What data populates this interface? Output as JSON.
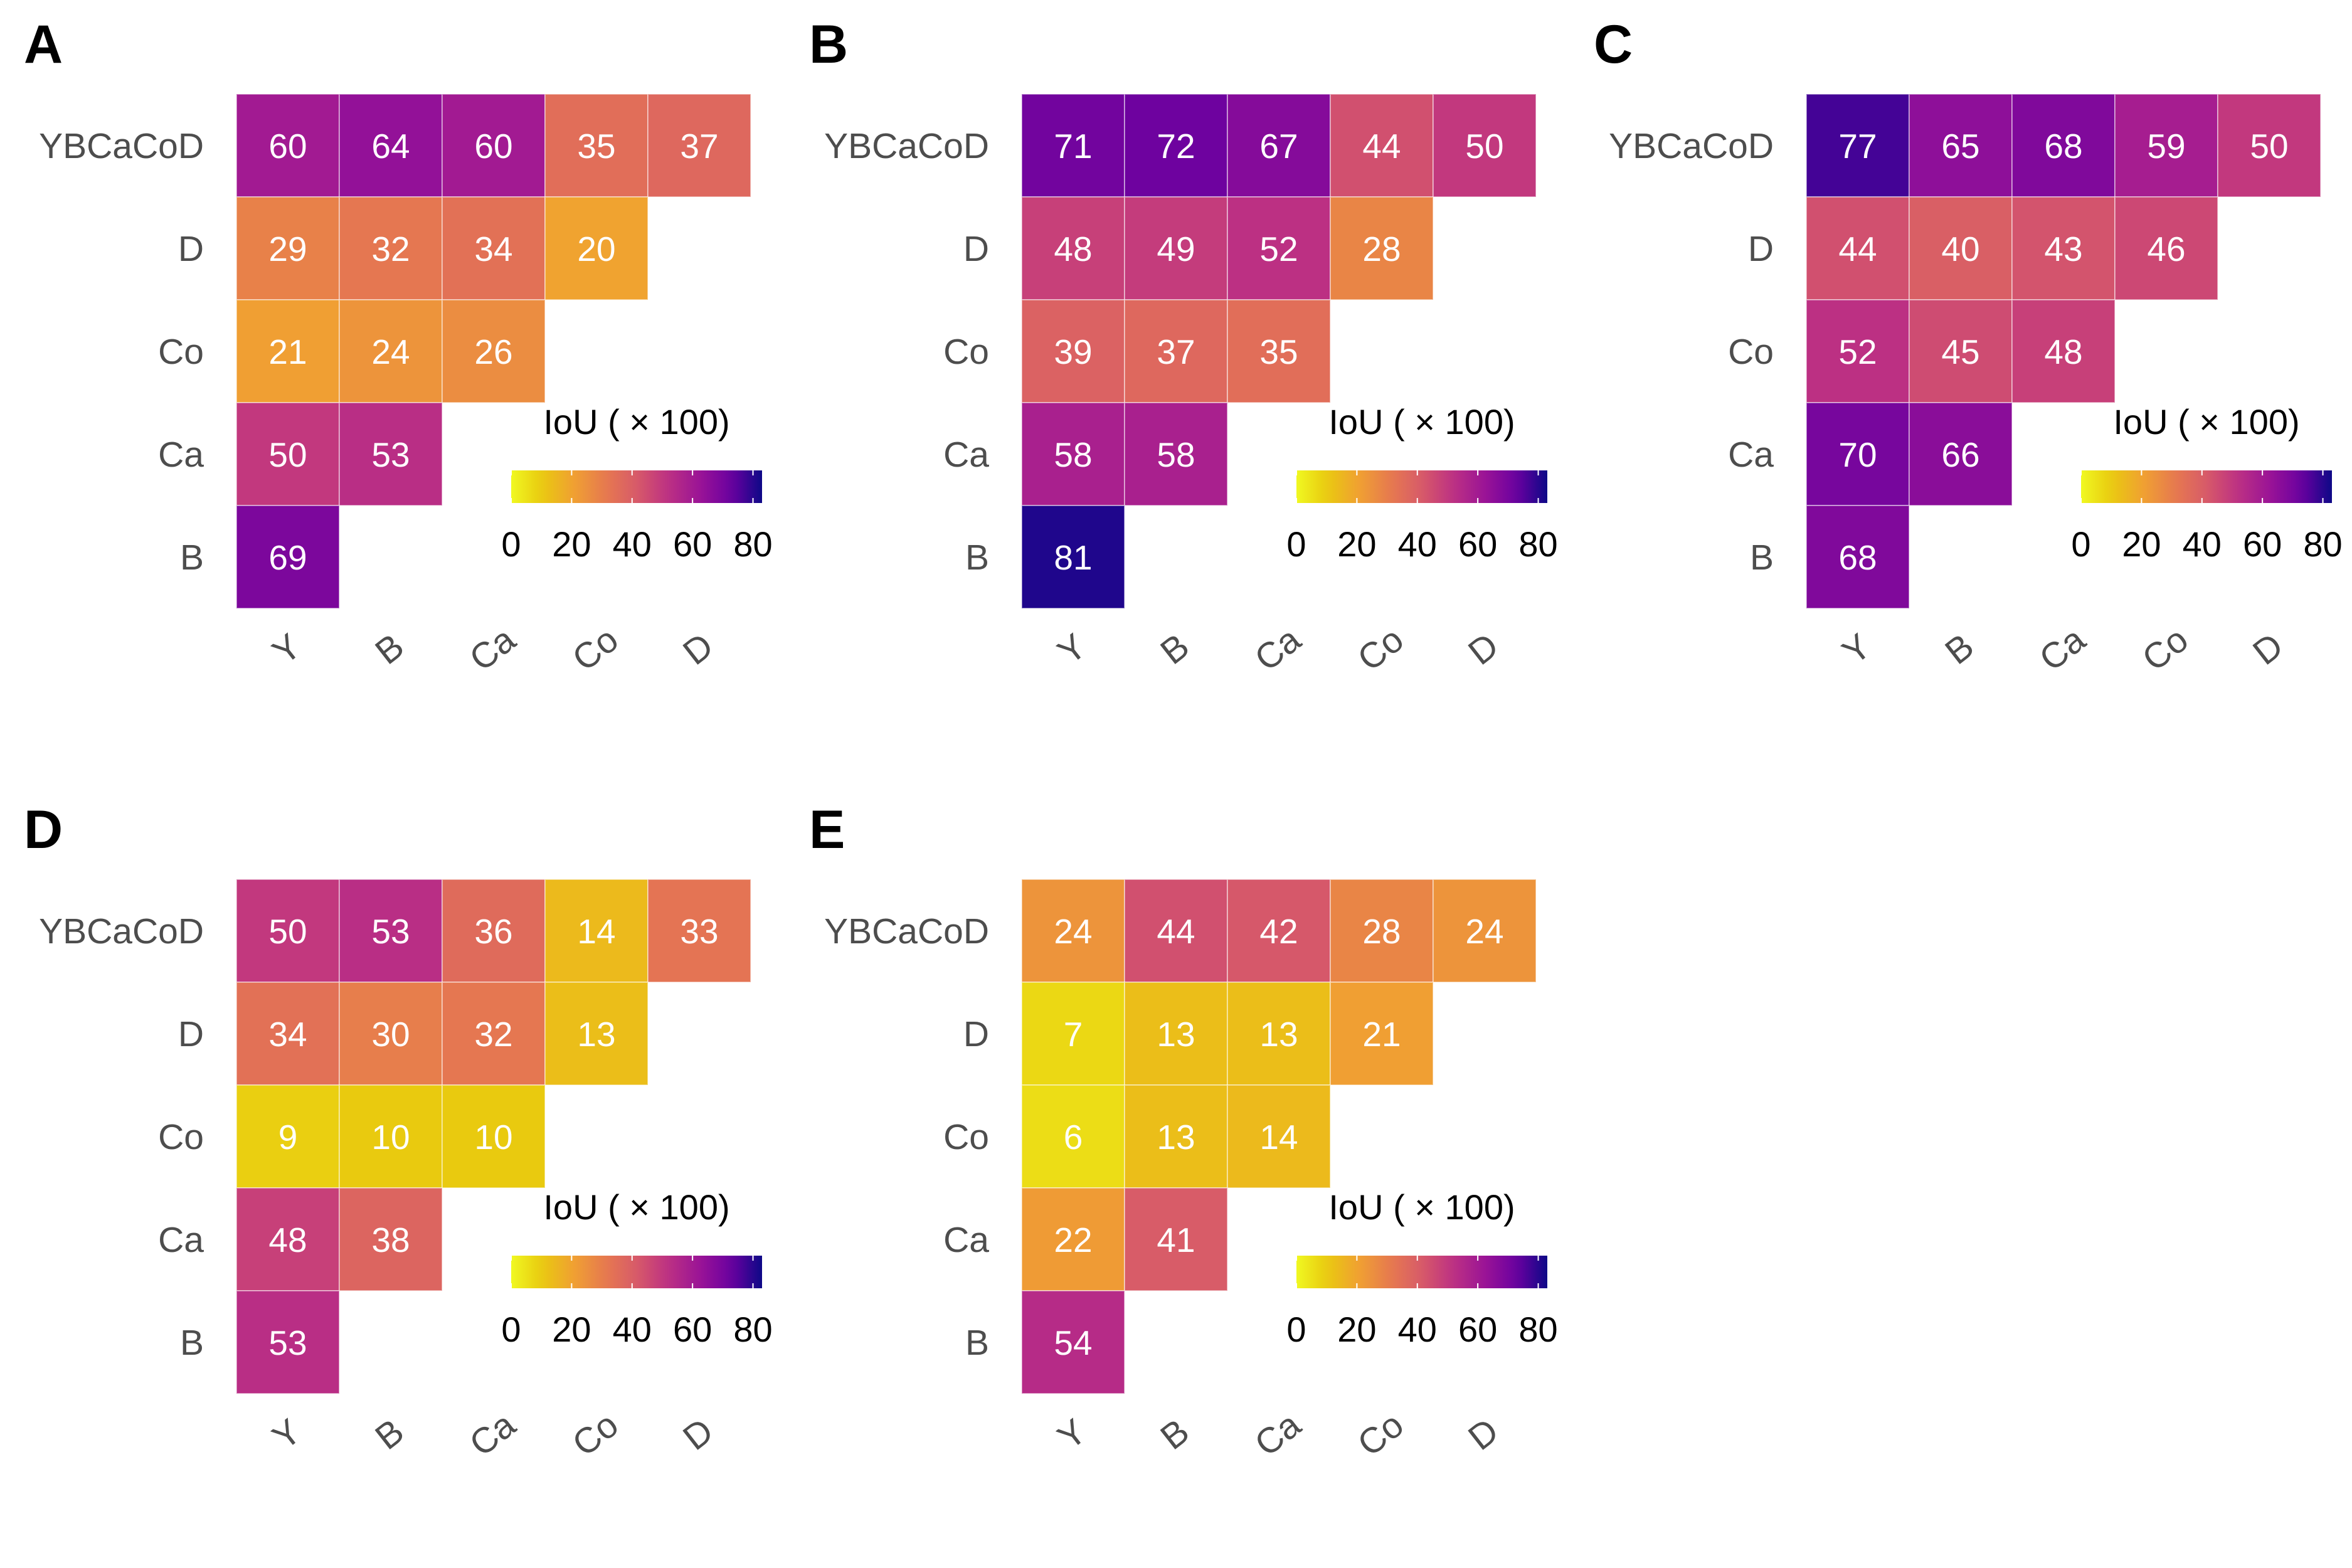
{
  "rows": [
    "YBCaCoD",
    "D",
    "Co",
    "Ca",
    "B"
  ],
  "columns": [
    "Y",
    "B",
    "Ca",
    "Co",
    "D"
  ],
  "legend": {
    "title": "IoU ( × 100)",
    "ticks": [
      "0",
      "20",
      "40",
      "60",
      "80"
    ],
    "range": [
      0,
      83
    ],
    "colormap": "plasma (reversed)"
  },
  "chart_data": [
    {
      "panel": "A",
      "type": "heatmap",
      "rows": [
        "YBCaCoD",
        "D",
        "Co",
        "Ca",
        "B"
      ],
      "columns": [
        "Y",
        "B",
        "Ca",
        "Co",
        "D"
      ],
      "values": [
        [
          60,
          64,
          60,
          35,
          37
        ],
        [
          29,
          32,
          34,
          20
        ],
        [
          21,
          24,
          26
        ],
        [
          50,
          53
        ],
        [
          69
        ]
      ],
      "legend_title": "IoU ( × 100)"
    },
    {
      "panel": "B",
      "type": "heatmap",
      "rows": [
        "YBCaCoD",
        "D",
        "Co",
        "Ca",
        "B"
      ],
      "columns": [
        "Y",
        "B",
        "Ca",
        "Co",
        "D"
      ],
      "values": [
        [
          71,
          72,
          67,
          44,
          50
        ],
        [
          48,
          49,
          52,
          28
        ],
        [
          39,
          37,
          35
        ],
        [
          58,
          58
        ],
        [
          81
        ]
      ],
      "legend_title": "IoU ( × 100)"
    },
    {
      "panel": "C",
      "type": "heatmap",
      "rows": [
        "YBCaCoD",
        "D",
        "Co",
        "Ca",
        "B"
      ],
      "columns": [
        "Y",
        "B",
        "Ca",
        "Co",
        "D"
      ],
      "values": [
        [
          77,
          65,
          68,
          59,
          50
        ],
        [
          44,
          40,
          43,
          46
        ],
        [
          52,
          45,
          48
        ],
        [
          70,
          66
        ],
        [
          68
        ]
      ],
      "legend_title": "IoU ( × 100)"
    },
    {
      "panel": "D",
      "type": "heatmap",
      "rows": [
        "YBCaCoD",
        "D",
        "Co",
        "Ca",
        "B"
      ],
      "columns": [
        "Y",
        "B",
        "Ca",
        "Co",
        "D"
      ],
      "values": [
        [
          50,
          53,
          36,
          14,
          33
        ],
        [
          34,
          30,
          32,
          13
        ],
        [
          9,
          10,
          10
        ],
        [
          48,
          38
        ],
        [
          53
        ]
      ],
      "legend_title": "IoU ( × 100)"
    },
    {
      "panel": "E",
      "type": "heatmap",
      "rows": [
        "YBCaCoD",
        "D",
        "Co",
        "Ca",
        "B"
      ],
      "columns": [
        "Y",
        "B",
        "Ca",
        "Co",
        "D"
      ],
      "values": [
        [
          24,
          44,
          42,
          28,
          24
        ],
        [
          7,
          13,
          13,
          21
        ],
        [
          6,
          13,
          14
        ],
        [
          22,
          41
        ],
        [
          54
        ]
      ],
      "legend_title": "IoU ( × 100)"
    }
  ]
}
